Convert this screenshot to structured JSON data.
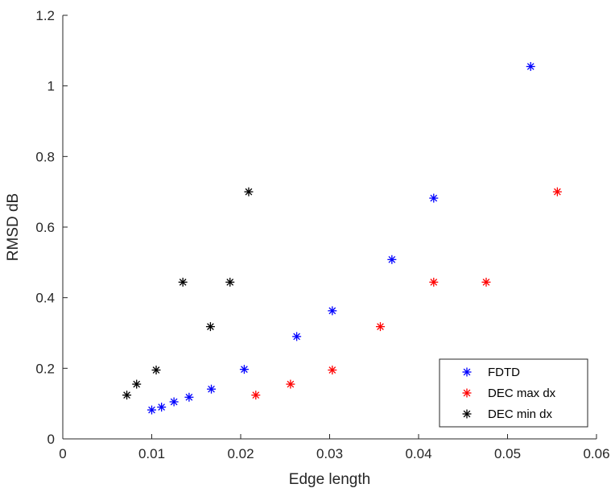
{
  "chart_data": {
    "type": "scatter",
    "title": "",
    "xlabel": "Edge length",
    "ylabel": "RMSD dB",
    "xlim": [
      0,
      0.06
    ],
    "ylim": [
      0,
      1.2
    ],
    "xticks": [
      0,
      0.01,
      0.02,
      0.03,
      0.04,
      0.05,
      0.06
    ],
    "xtick_labels": [
      "0",
      "0.01",
      "0.02",
      "0.03",
      "0.04",
      "0.05",
      "0.06"
    ],
    "yticks": [
      0,
      0.2,
      0.4,
      0.6,
      0.8,
      1,
      1.2
    ],
    "ytick_labels": [
      "0",
      "0.2",
      "0.4",
      "0.6",
      "0.8",
      "1",
      "1.2"
    ],
    "grid": false,
    "legend_position": "bottom-right",
    "marker": "asterisk",
    "series": [
      {
        "name": "FDTD",
        "color": "#0000ff",
        "x": [
          0.01,
          0.0111,
          0.0125,
          0.0142,
          0.0167,
          0.0204,
          0.0263,
          0.0303,
          0.037,
          0.0417,
          0.0526
        ],
        "y": [
          0.082,
          0.09,
          0.105,
          0.118,
          0.141,
          0.197,
          0.29,
          0.363,
          0.508,
          0.682,
          1.055
        ]
      },
      {
        "name": "DEC max dx",
        "color": "#ff0000",
        "x": [
          0.0217,
          0.0256,
          0.0303,
          0.0357,
          0.0417,
          0.0476,
          0.0556
        ],
        "y": [
          0.124,
          0.155,
          0.195,
          0.318,
          0.444,
          0.444,
          0.7
        ]
      },
      {
        "name": "DEC min dx",
        "color": "#000000",
        "x": [
          0.0072,
          0.0083,
          0.0105,
          0.0135,
          0.0166,
          0.0188,
          0.0209
        ],
        "y": [
          0.124,
          0.155,
          0.195,
          0.444,
          0.318,
          0.444,
          0.7
        ]
      }
    ]
  }
}
